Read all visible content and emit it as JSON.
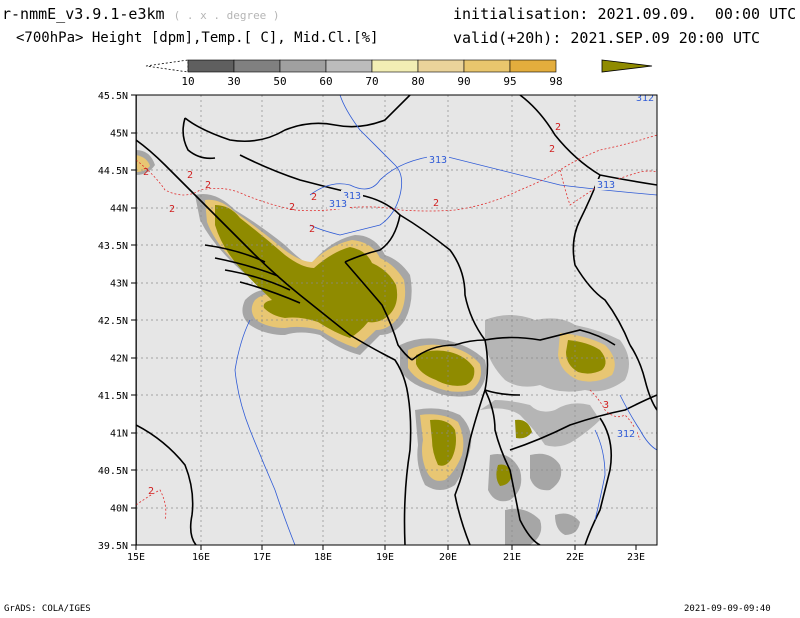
{
  "header": {
    "title": "r-nmmE_v3.9.1-e3km",
    "title_sub": "( . x . degree )",
    "subtitle": "<700hPa> Height [dpm],Temp.[ C], Mid.Cl.[%]",
    "init_label": "initialisation:",
    "init_value": "2021.09.09.  00:00 UTC",
    "valid_label": "valid(+20h):",
    "valid_value": "2021.SEP.09 20:00 UTC"
  },
  "colorbar": {
    "levels": [
      "10",
      "30",
      "50",
      "60",
      "70",
      "80",
      "90",
      "95",
      "98"
    ],
    "colors": [
      "#5f5f5f",
      "#808080",
      "#a0a0a0",
      "#bcbcbc",
      "#f2eeb4",
      "#ead39a",
      "#e9c66d",
      "#e3ad3d",
      "#8f8b00"
    ]
  },
  "map": {
    "lat_labels": [
      "45.5N",
      "45N",
      "44.5N",
      "44N",
      "43.5N",
      "43N",
      "42.5N",
      "42N",
      "41.5N",
      "41N",
      "40.5N",
      "40N",
      "39.5N"
    ],
    "lon_labels": [
      "15E",
      "16E",
      "17E",
      "18E",
      "19E",
      "20E",
      "21E",
      "22E",
      "23E"
    ],
    "height_contours": [
      "313",
      "313",
      "313",
      "313",
      "312",
      "312"
    ],
    "temp_contours": [
      "2",
      "2",
      "2",
      "2",
      "2",
      "2",
      "2",
      "2",
      "2",
      "2",
      "3",
      "2"
    ]
  },
  "footer": {
    "left": "GrADS: COLA/IGES",
    "right": "2021-09-09-09:40"
  }
}
